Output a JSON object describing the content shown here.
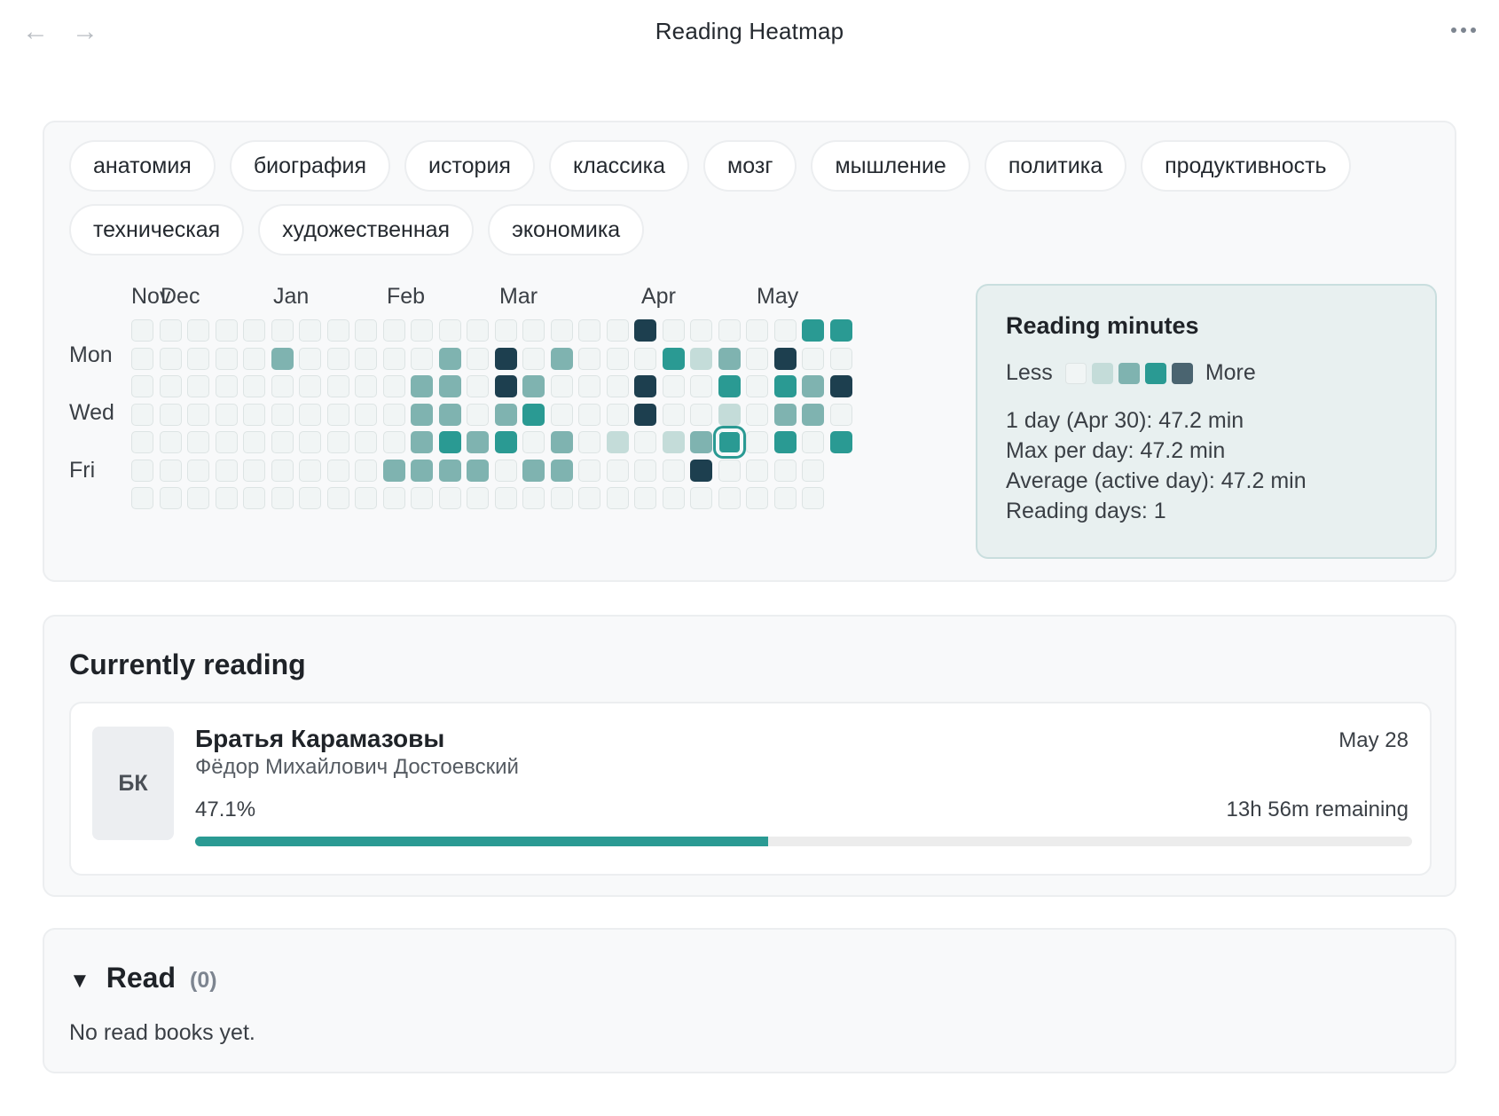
{
  "window": {
    "title": "Reading Heatmap",
    "back_icon": "←",
    "forward_icon": "→"
  },
  "tags": [
    "анатомия",
    "биография",
    "история",
    "классика",
    "мозг",
    "мышление",
    "политика",
    "продуктивность",
    "техническая",
    "художественная",
    "экономика"
  ],
  "heatmap": {
    "months": [
      "Nov",
      "Dec",
      "Jan",
      "Feb",
      "Mar",
      "Apr",
      "May"
    ],
    "day_labels": [
      "Mon",
      "Wed",
      "Fri"
    ],
    "colors": [
      "#f1f5f5",
      "#c4dcd9",
      "#7fb3b0",
      "#2a9a93",
      "#1d3f4f"
    ],
    "selected_day": "Apr 30",
    "levels": [
      [
        0,
        0,
        0,
        0,
        0,
        0,
        0,
        0,
        0,
        0,
        0,
        0,
        0,
        0,
        0,
        0,
        0,
        0,
        4,
        0,
        0,
        0,
        0,
        0,
        3,
        3
      ],
      [
        0,
        0,
        0,
        0,
        0,
        2,
        0,
        0,
        0,
        0,
        0,
        2,
        0,
        4,
        0,
        2,
        0,
        0,
        0,
        3,
        1,
        2,
        0,
        4,
        0,
        0
      ],
      [
        0,
        0,
        0,
        0,
        0,
        0,
        0,
        0,
        0,
        0,
        2,
        2,
        0,
        4,
        2,
        0,
        0,
        0,
        4,
        0,
        0,
        3,
        0,
        3,
        2,
        4
      ],
      [
        0,
        0,
        0,
        0,
        0,
        0,
        0,
        0,
        0,
        0,
        2,
        2,
        0,
        2,
        3,
        0,
        0,
        0,
        4,
        0,
        0,
        1,
        0,
        2,
        2,
        0
      ],
      [
        0,
        0,
        0,
        0,
        0,
        0,
        0,
        0,
        0,
        0,
        2,
        3,
        2,
        3,
        0,
        2,
        0,
        1,
        0,
        1,
        2,
        3,
        0,
        3,
        0,
        3
      ],
      [
        0,
        0,
        0,
        0,
        0,
        0,
        0,
        0,
        0,
        2,
        2,
        2,
        2,
        0,
        2,
        2,
        0,
        0,
        0,
        0,
        4,
        0,
        0,
        0,
        0,
        null
      ],
      [
        0,
        0,
        0,
        0,
        0,
        0,
        0,
        0,
        0,
        0,
        0,
        0,
        0,
        0,
        0,
        0,
        0,
        0,
        0,
        0,
        0,
        0,
        0,
        0,
        0,
        null
      ]
    ]
  },
  "stats": {
    "title": "Reading minutes",
    "less_label": "Less",
    "more_label": "More",
    "day_line": "1 day (Apr 30): 47.2 min",
    "max_line": "Max per day: 47.2 min",
    "avg_line": "Average (active day): 47.2 min",
    "days_line": "Reading days: 1"
  },
  "current": {
    "section_title": "Currently reading",
    "book": {
      "cover_initials": "БК",
      "title": "Братья Карамазовы",
      "author": "Фёдор Михайлович Достоевский",
      "date": "May 28",
      "percent_label": "47.1%",
      "progress": 0.471,
      "remaining": "13h 56m remaining"
    }
  },
  "read": {
    "caret": "▼",
    "title": "Read",
    "count": "(0)",
    "empty": "No read books yet."
  }
}
